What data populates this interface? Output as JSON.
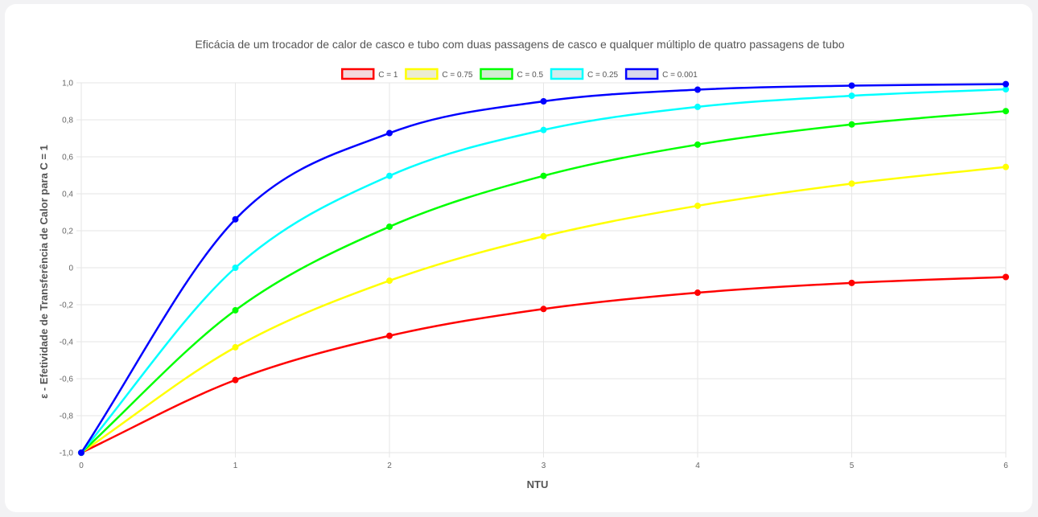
{
  "chart_data": {
    "type": "line",
    "title": "Eficácia de um trocador de calor de casco e tubo com duas passagens de casco e qualquer múltiplo de quatro passagens de tubo",
    "xlabel": "NTU",
    "ylabel": "ε - Efetividade de Transferência de Calor para C = 1",
    "xlim": [
      0,
      6
    ],
    "ylim": [
      -1.0,
      1.0
    ],
    "x_ticks": [
      "0",
      "1",
      "2",
      "3",
      "4",
      "5",
      "6"
    ],
    "y_ticks": [
      "-1,0",
      "-0,8",
      "-0,6",
      "-0,4",
      "-0,2",
      "0",
      "0,2",
      "0,4",
      "0,6",
      "0,8",
      "1,0"
    ],
    "grid": true,
    "legend_position": "top",
    "x": [
      0,
      1,
      2,
      3,
      4,
      5,
      6
    ],
    "series": [
      {
        "name": "C = 1",
        "color": "#ff0000",
        "fill": "#f4d8dc",
        "values": [
          -1.0,
          -0.607,
          -0.368,
          -0.223,
          -0.135,
          -0.082,
          -0.05
        ]
      },
      {
        "name": "C = 0.75",
        "color": "#ffff00",
        "fill": "#ececd2",
        "values": [
          -1.0,
          -0.43,
          -0.07,
          0.17,
          0.335,
          0.455,
          0.545
        ]
      },
      {
        "name": "C = 0.5",
        "color": "#00ff00",
        "fill": "#d2ecd2",
        "values": [
          -1.0,
          -0.23,
          0.222,
          0.497,
          0.666,
          0.775,
          0.847
        ]
      },
      {
        "name": "C = 0.25",
        "color": "#00ffff",
        "fill": "#d2ecec",
        "values": [
          -1.0,
          0.0,
          0.497,
          0.745,
          0.87,
          0.93,
          0.965
        ]
      },
      {
        "name": "C = 0.001",
        "color": "#0000ff",
        "fill": "#d8d8ec",
        "values": [
          -1.0,
          0.262,
          0.728,
          0.9,
          0.963,
          0.985,
          0.993
        ]
      }
    ]
  }
}
